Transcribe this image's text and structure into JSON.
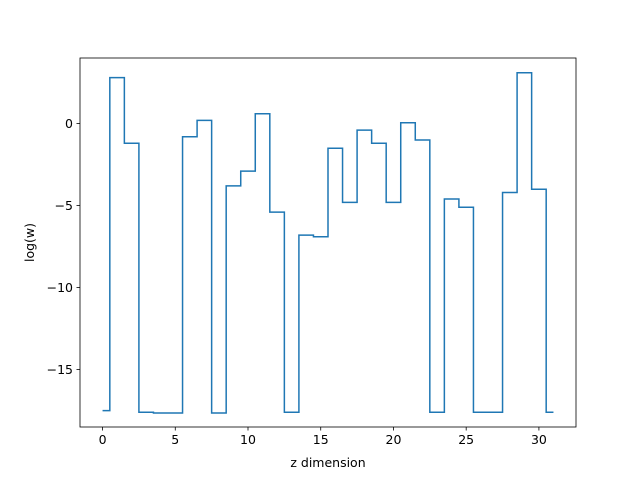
{
  "chart_data": {
    "type": "line",
    "drawstyle": "steps-mid",
    "title": "",
    "xlabel": "z dimension",
    "ylabel": "log(w)",
    "xlim": [
      -1.55,
      32.55
    ],
    "ylim": [
      -18.5,
      4.0
    ],
    "xticks": [
      0,
      5,
      10,
      15,
      20,
      25,
      30
    ],
    "yticks": [
      -15,
      -10,
      -5,
      0
    ],
    "ytick_labels": [
      "−15",
      "−10",
      "−5",
      "0"
    ],
    "grid": false,
    "legend": "none",
    "series": [
      {
        "color": "#1f77b4",
        "x": [
          0,
          1,
          2,
          3,
          4,
          5,
          6,
          7,
          8,
          9,
          10,
          11,
          12,
          13,
          14,
          15,
          16,
          17,
          18,
          19,
          20,
          21,
          22,
          23,
          24,
          25,
          26,
          27,
          28,
          29,
          30,
          31
        ],
        "y": [
          -17.5,
          2.8,
          -1.2,
          -17.6,
          -17.65,
          -17.65,
          -0.8,
          0.2,
          -17.65,
          -3.8,
          -2.9,
          0.6,
          -5.4,
          -17.6,
          -6.8,
          -6.9,
          -1.5,
          -4.8,
          -0.4,
          -1.2,
          -4.8,
          0.05,
          -1.0,
          -17.6,
          -4.6,
          -5.1,
          -17.6,
          -17.6,
          -4.2,
          3.1,
          -4.0,
          -17.6
        ]
      }
    ]
  }
}
